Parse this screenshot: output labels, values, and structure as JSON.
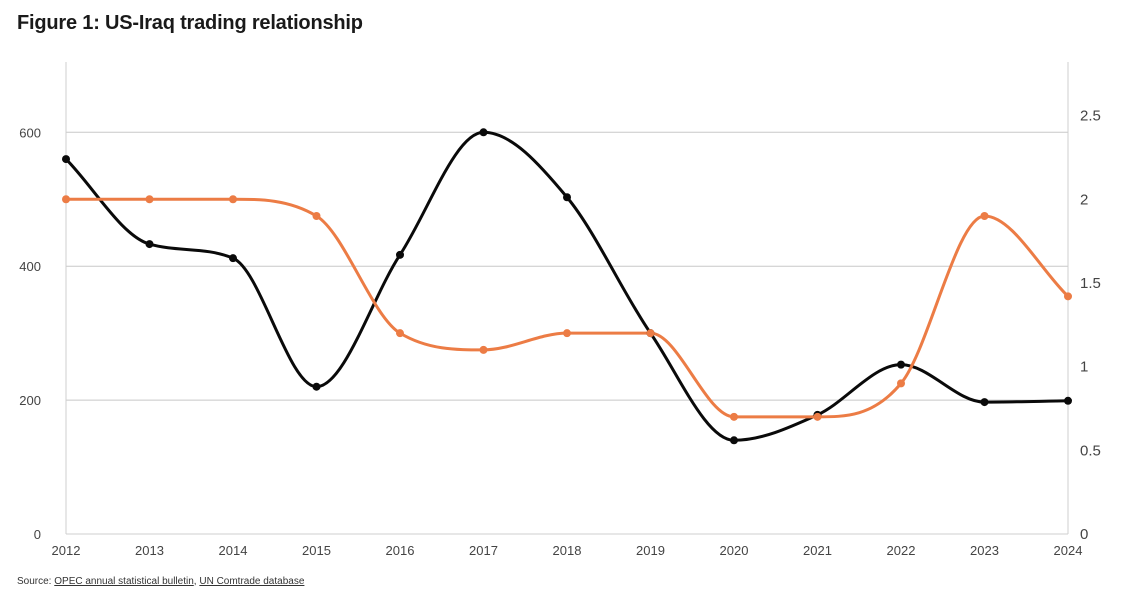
{
  "title": "Figure 1: US-Iraq trading relationship",
  "source": {
    "prefix": "Source: ",
    "links": [
      "OPEC annual statistical bulletin",
      "UN Comtrade database"
    ],
    "separator": ", "
  },
  "colors": {
    "series_black": "#0a0a0a",
    "series_orange": "#ec7c45",
    "grid": "#c8c8c8",
    "axis": "#cfcfcf"
  },
  "chart_data": {
    "type": "line",
    "title": "Figure 1: US-Iraq trading relationship",
    "xlabel": "",
    "ylabel": "",
    "x": [
      2012,
      2013,
      2014,
      2015,
      2016,
      2017,
      2018,
      2019,
      2020,
      2021,
      2022,
      2023,
      2024
    ],
    "x_tick_labels": [
      "2012",
      "2013",
      "2014",
      "2015",
      "2016",
      "2017",
      "2018",
      "2019",
      "2020",
      "2021",
      "2022",
      "2023",
      "2024"
    ],
    "y_left": {
      "range": [
        0,
        700
      ],
      "ticks": [
        0,
        200,
        400,
        600
      ],
      "tick_labels": [
        "0",
        "200",
        "400",
        "600"
      ]
    },
    "y_right": {
      "range": [
        0,
        2.8
      ],
      "ticks": [
        0,
        0.5,
        1,
        1.5,
        2,
        2.5
      ],
      "tick_labels": [
        "0",
        "0.5",
        "1",
        "1.5",
        "2",
        "2.5"
      ]
    },
    "grid": "horizontal",
    "series": [
      {
        "axis": "left",
        "color": "#0a0a0a",
        "values": [
          560,
          433,
          412,
          220,
          417,
          600,
          503,
          300,
          140,
          178,
          253,
          197,
          199
        ]
      },
      {
        "axis": "right",
        "color": "#ec7c45",
        "values": [
          2.0,
          2.0,
          2.0,
          1.9,
          1.2,
          1.1,
          1.2,
          1.2,
          0.7,
          0.7,
          0.9,
          1.9,
          1.42
        ]
      }
    ]
  }
}
